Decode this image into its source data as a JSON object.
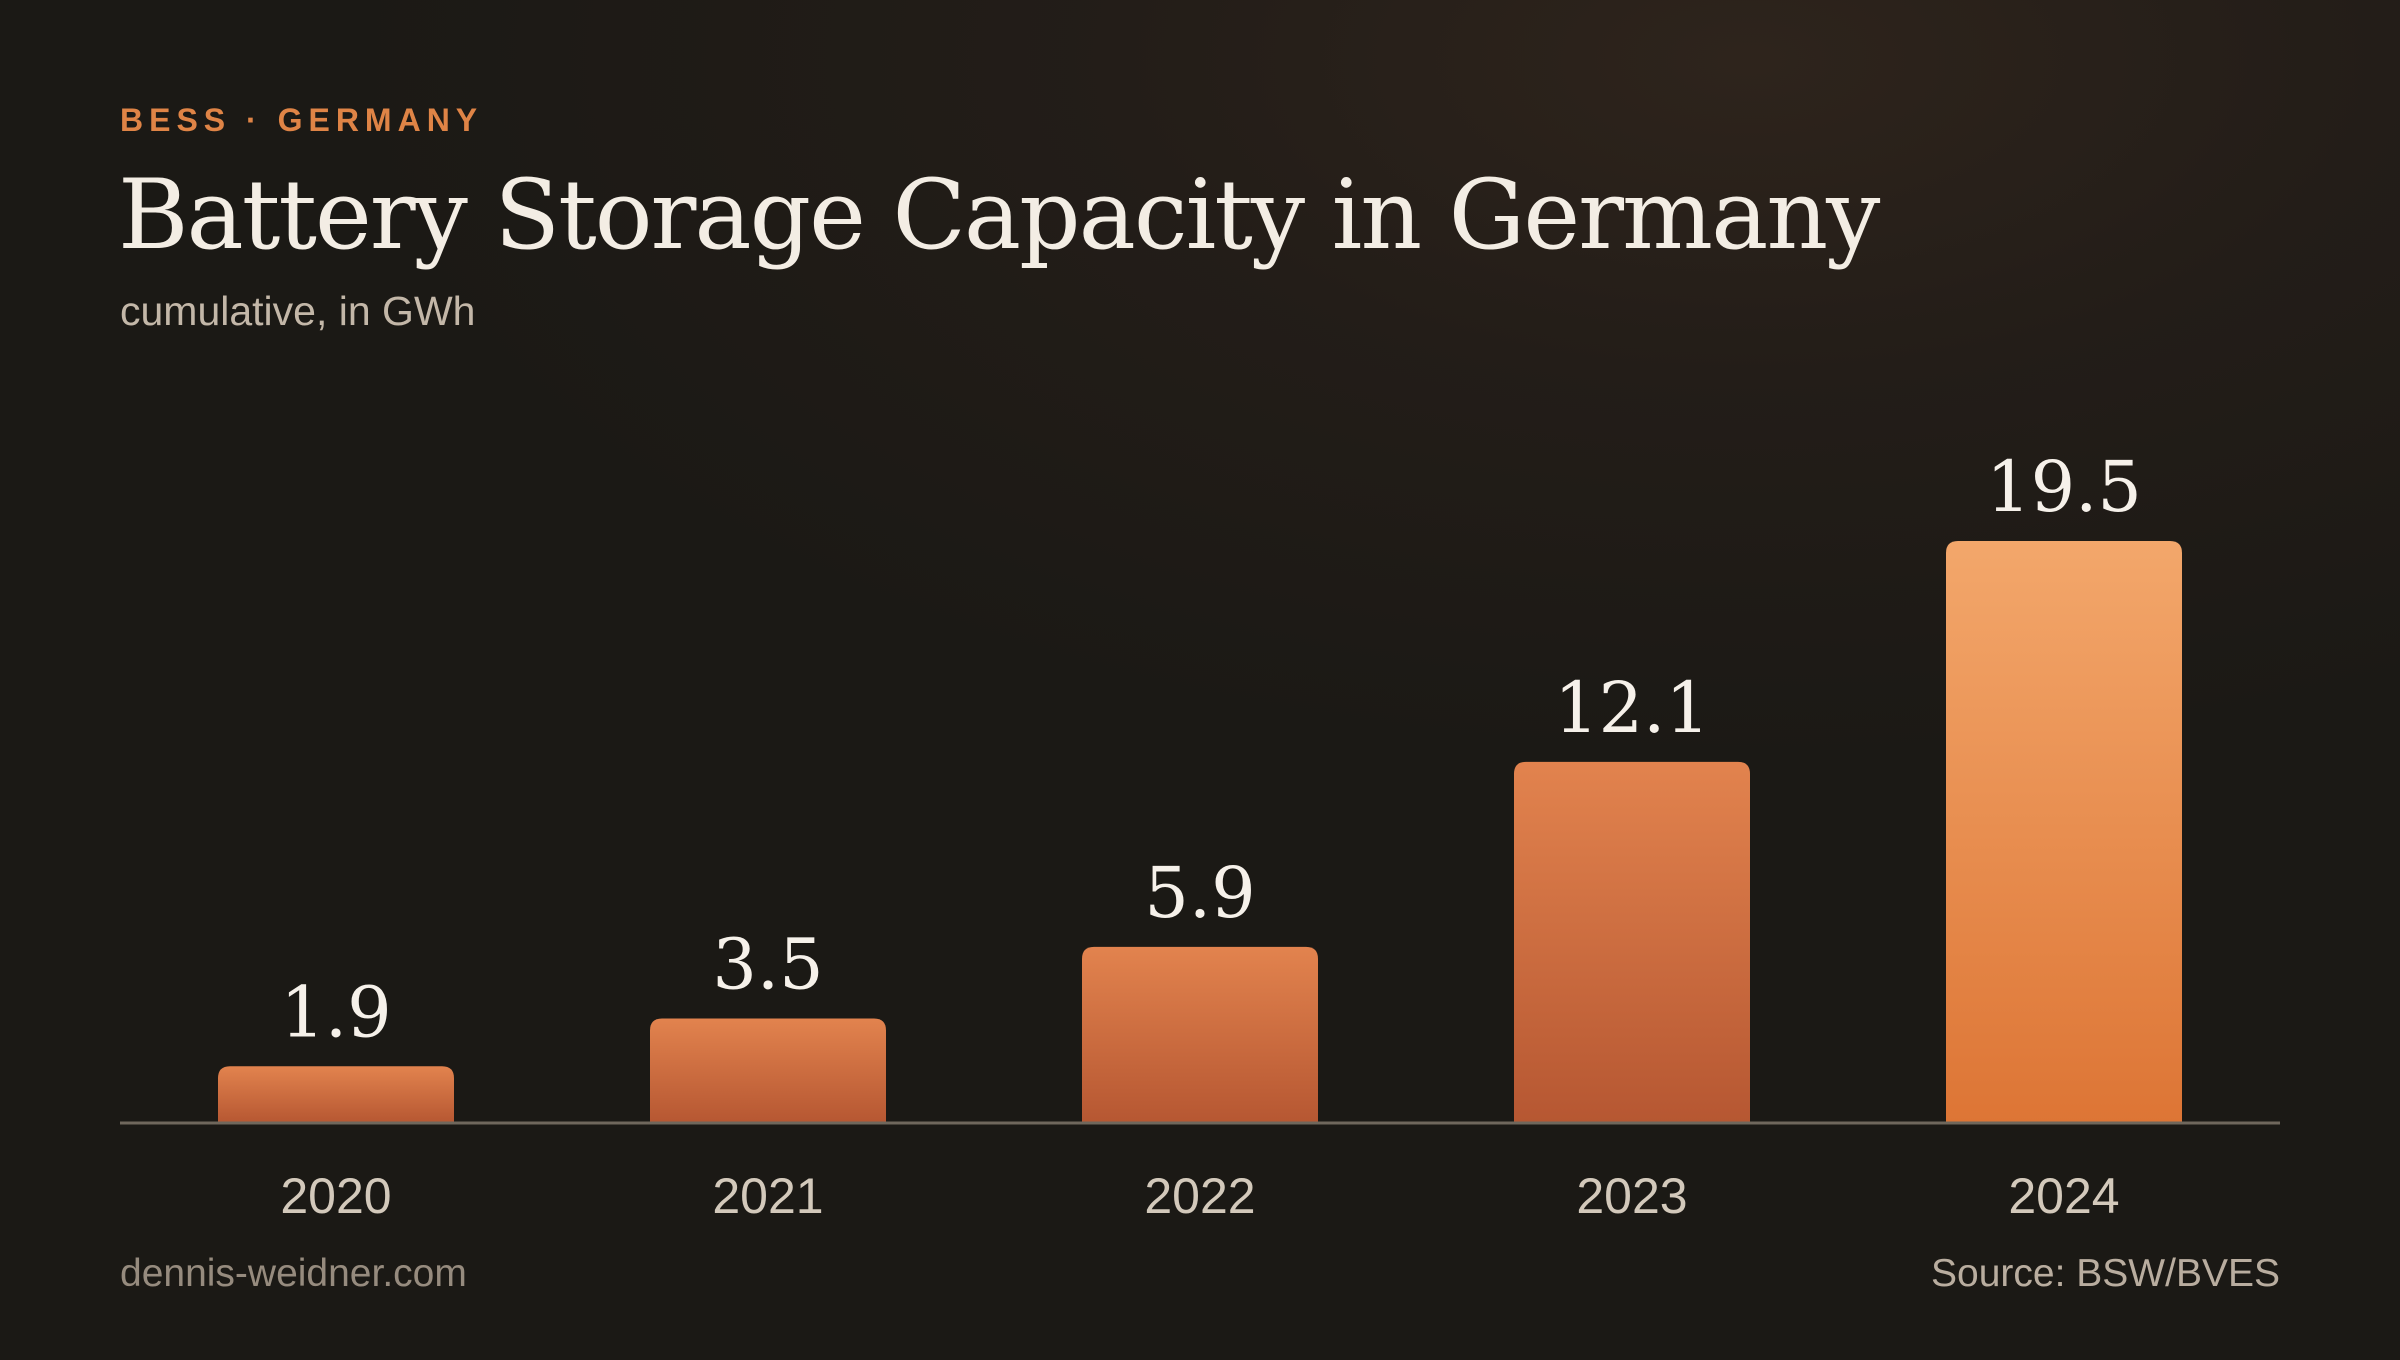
{
  "header": {
    "eyebrow": "BESS · GERMANY",
    "title": "Battery Storage Capacity in Germany",
    "subtitle": "cumulative, in GWh"
  },
  "chart_data": {
    "type": "bar",
    "categories": [
      "2020",
      "2021",
      "2022",
      "2023",
      "2024"
    ],
    "values": [
      1.9,
      3.5,
      5.9,
      12.1,
      19.5
    ],
    "value_labels": [
      "1.9",
      "3.5",
      "5.9",
      "12.1",
      "19.5"
    ],
    "unit": "GWh",
    "ylim": [
      0,
      19.5
    ],
    "grid": false,
    "legend": "none",
    "colors": {
      "bar_top": "#e2834e",
      "bar_bottom": "#b65732",
      "highlight_top": "#f3a76b",
      "highlight_bottom": "#dd7535",
      "baseline": "#6f675c",
      "value_label": "#f6f1ea",
      "tick_label": "#d3c9bb"
    }
  },
  "footer": {
    "site": "dennis-weidner.com",
    "source": "Source: BSW/BVES"
  }
}
